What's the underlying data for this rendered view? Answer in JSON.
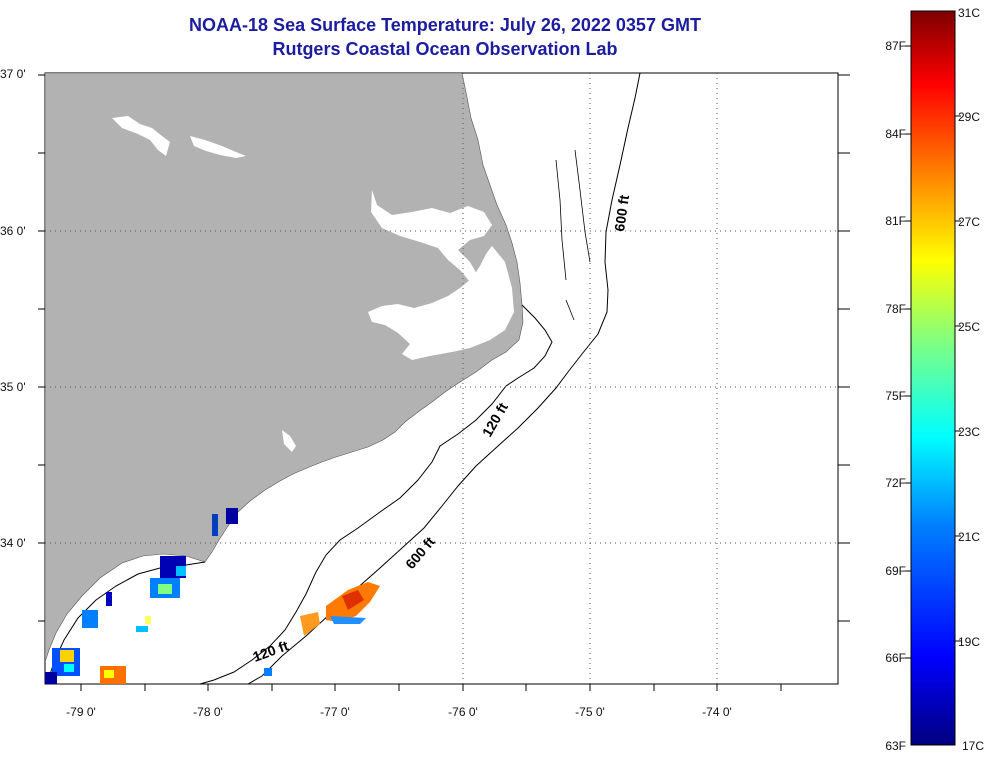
{
  "header": {
    "title": "NOAA-18 Sea Surface Temperature:  July 26, 2022 0357 GMT",
    "subtitle": "Rutgers Coastal Ocean Observation Lab"
  },
  "map": {
    "lat_ticks": [
      "37 0'",
      "36 0'",
      "35 0'",
      "34 0'"
    ],
    "lon_ticks": [
      "-79 0'",
      "-78 0'",
      "-77 0'",
      "-76 0'",
      "-75 0'",
      "-74 0'"
    ],
    "contour_labels": [
      "600 ft",
      "120 ft",
      "600 ft",
      "120 ft"
    ],
    "colors": {
      "land": "#b2b2b2",
      "water": "#ffffff",
      "contour": "#000000"
    }
  },
  "colorbar": {
    "celsius_labels": [
      "31C",
      "29C",
      "27C",
      "25C",
      "23C",
      "21C",
      "19C",
      "17C"
    ],
    "fahrenheit_labels": [
      "87F",
      "84F",
      "81F",
      "78F",
      "75F",
      "72F",
      "69F",
      "66F",
      "63F"
    ],
    "range_c": [
      17,
      31
    ],
    "colors": [
      "#00007f",
      "#0000ff",
      "#0080ff",
      "#00ffff",
      "#80ff80",
      "#ffff00",
      "#ff8000",
      "#ff0000",
      "#7f0000"
    ]
  }
}
